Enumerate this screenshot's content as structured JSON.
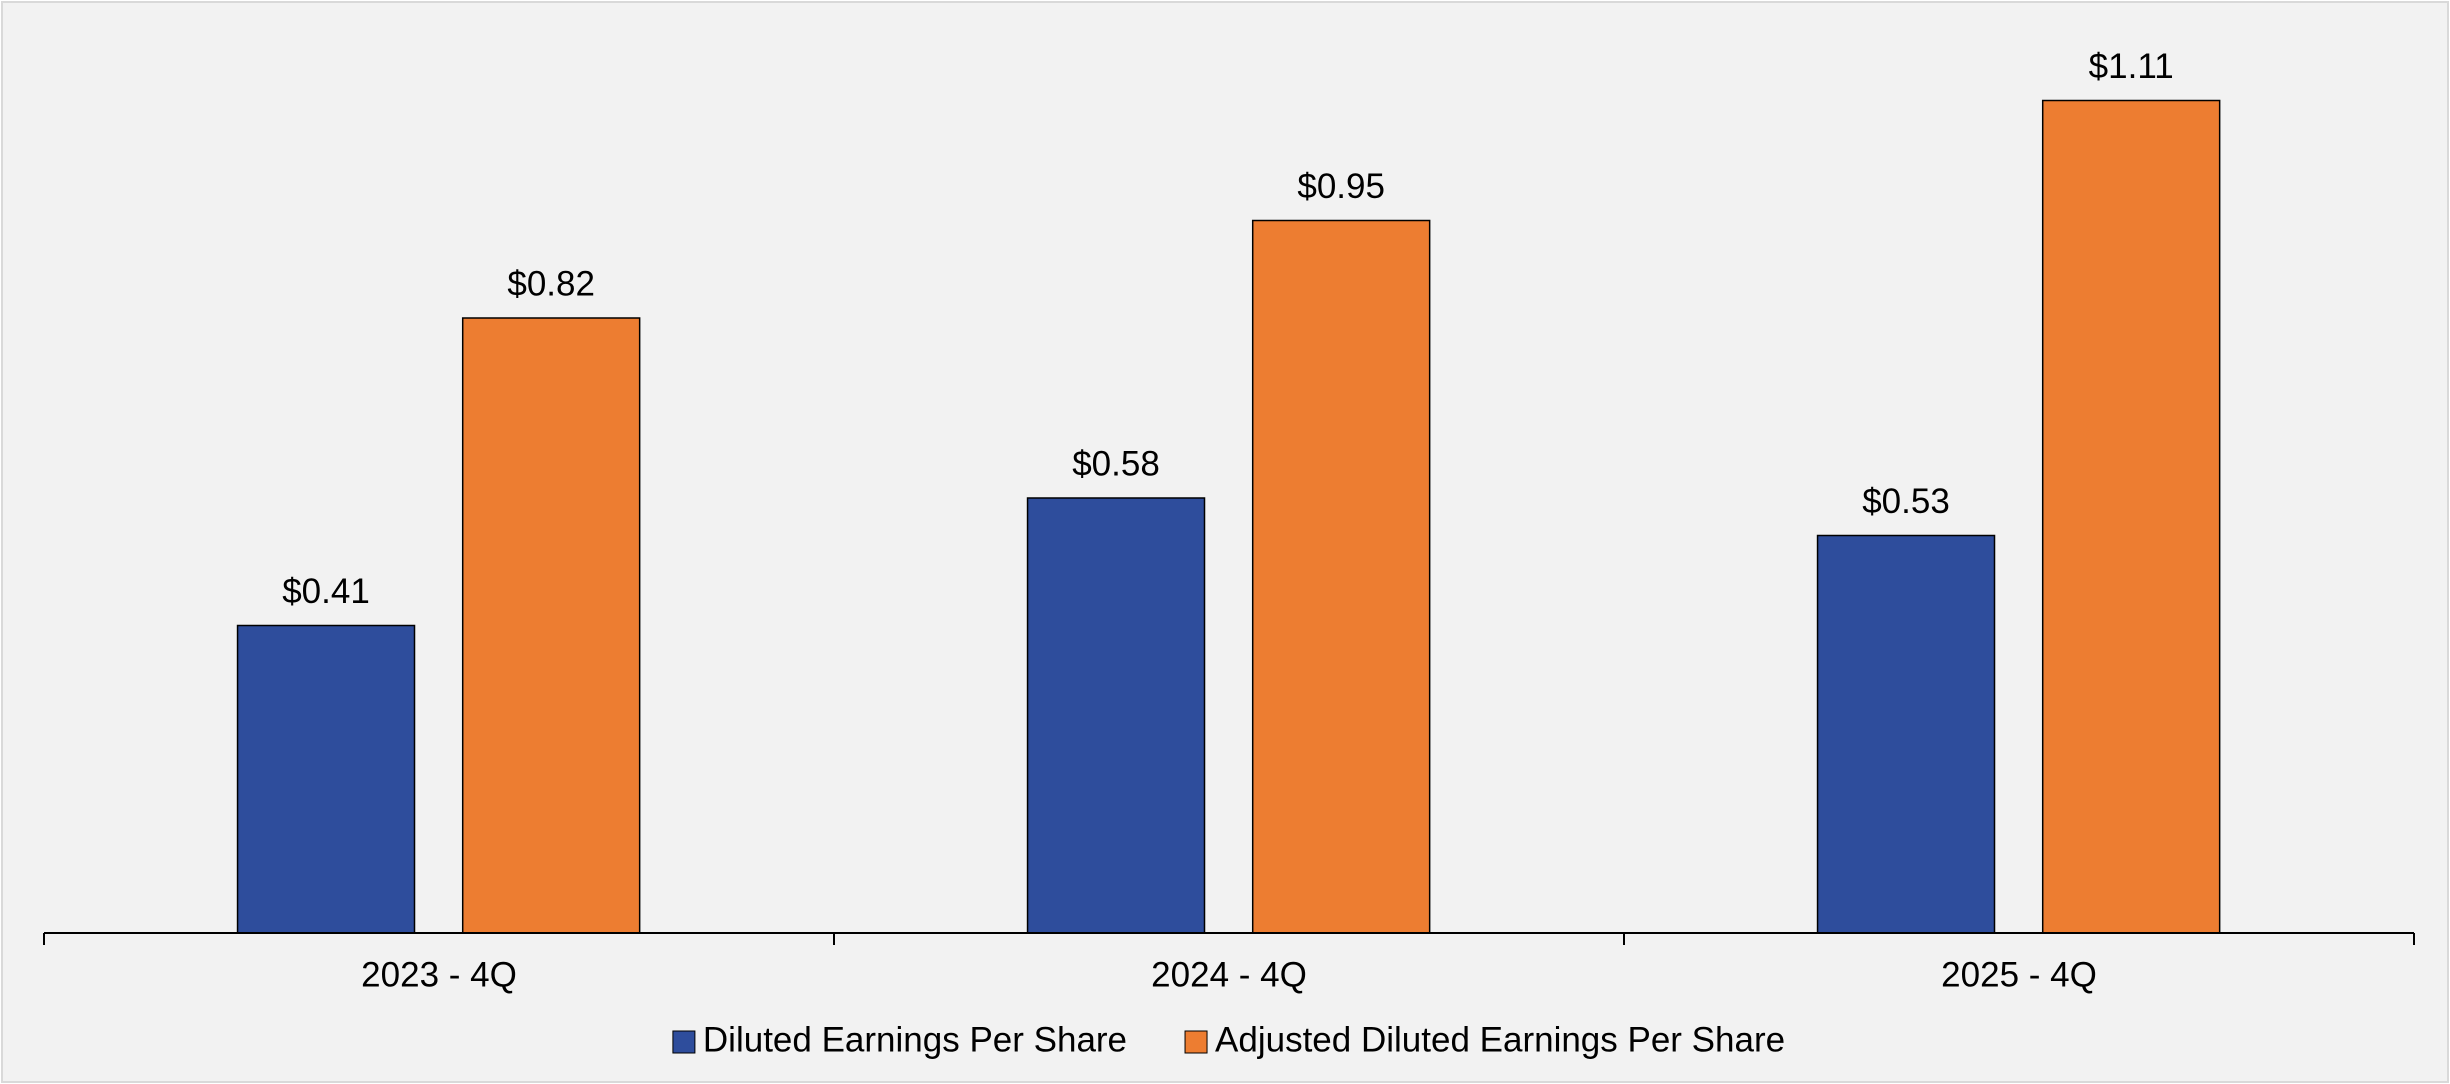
{
  "chart_data": {
    "type": "bar",
    "categories": [
      "2023 - 4Q",
      "2024 - 4Q",
      "2025 - 4Q"
    ],
    "series": [
      {
        "name": "Diluted Earnings Per Share",
        "color": "#2e4d9c",
        "values": [
          0.41,
          0.58,
          0.53
        ],
        "value_labels": [
          "$0.41",
          "$0.58",
          "$0.53"
        ]
      },
      {
        "name": "Adjusted Diluted Earnings Per Share",
        "color": "#ed7d31",
        "values": [
          0.82,
          0.95,
          1.11
        ],
        "value_labels": [
          "$0.82",
          "$0.95",
          "$1.11"
        ]
      }
    ],
    "ylim": [
      0,
      1.2
    ],
    "legend": "bottom"
  }
}
